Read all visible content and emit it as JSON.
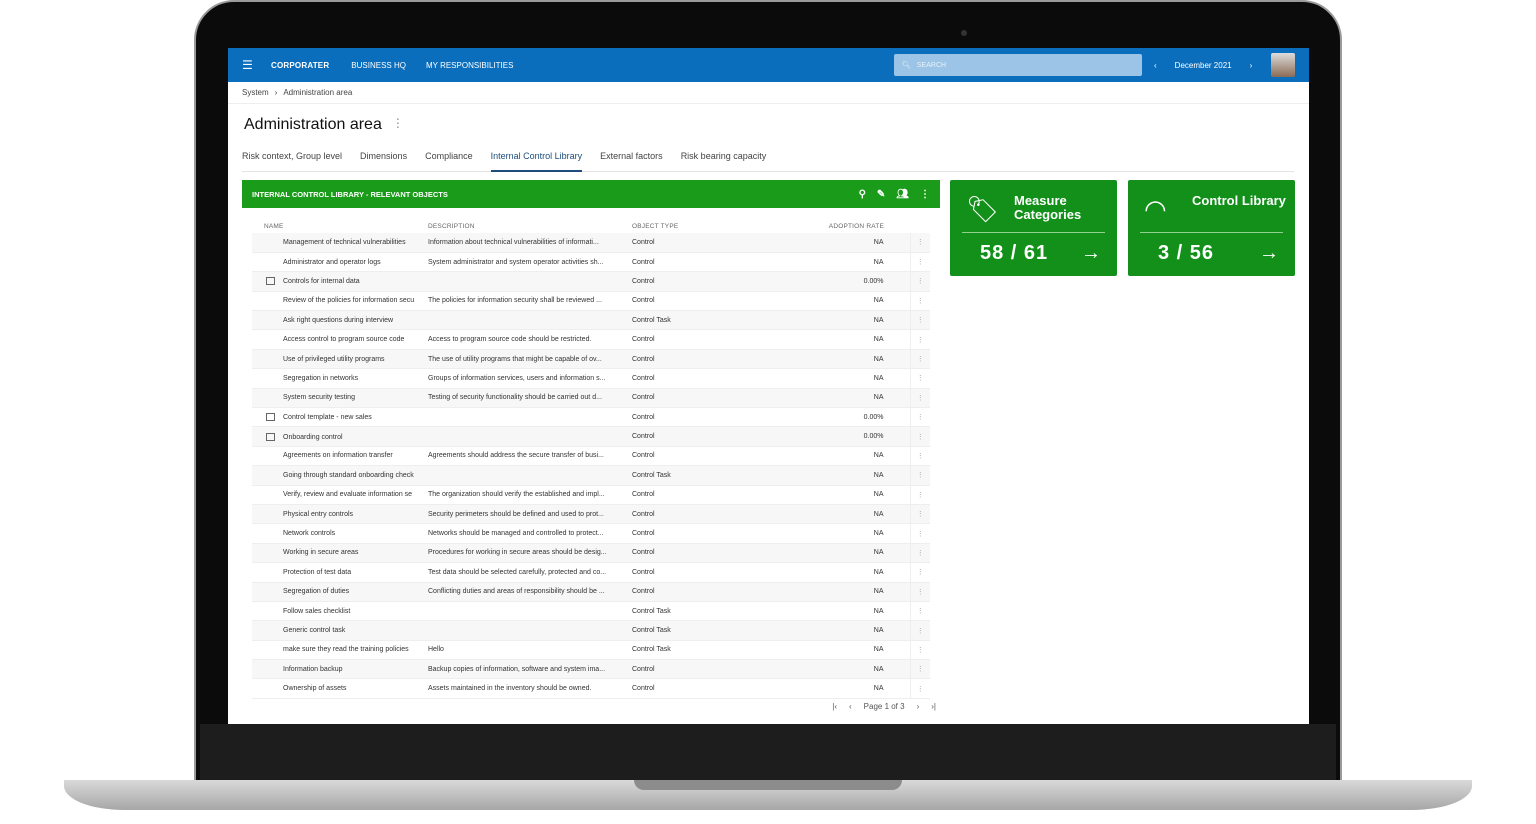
{
  "app": {
    "logo": "CORPORATER",
    "nav": [
      "BUSINESS HQ",
      "MY RESPONSIBILITIES"
    ],
    "search_placeholder": "SEARCH",
    "period": "December 2021"
  },
  "breadcrumb": [
    "System",
    "Administration area"
  ],
  "page_title": "Administration area",
  "tabs": [
    {
      "label": "Risk context, Group level"
    },
    {
      "label": "Dimensions"
    },
    {
      "label": "Compliance"
    },
    {
      "label": "Internal Control Library",
      "active": true
    },
    {
      "label": "External factors"
    },
    {
      "label": "Risk bearing capacity"
    }
  ],
  "panel": {
    "title": "INTERNAL CONTROL LIBRARY - RELEVANT OBJECTS",
    "columns": [
      "NAME",
      "DESCRIPTION",
      "OBJECT TYPE",
      "ADOPTION RATE"
    ],
    "rows": [
      [
        "Management of technical vulnerabilities",
        "Information about technical vulnerabilities of informati...",
        "Control",
        "NA",
        false
      ],
      [
        "Administrator and operator logs",
        "System administrator and system operator activities sh...",
        "Control",
        "NA",
        false
      ],
      [
        "Controls for internal data",
        "",
        "Control",
        "0.00%",
        true
      ],
      [
        "Review of the policies for information secu",
        "The policies for information security shall be reviewed ...",
        "Control",
        "NA",
        false
      ],
      [
        "Ask right questions during interview",
        "",
        "Control Task",
        "NA",
        false
      ],
      [
        "Access control to program source code",
        "Access to program source code should be restricted.",
        "Control",
        "NA",
        false
      ],
      [
        "Use of privileged utility programs",
        "The use of utility programs that might be capable of ov...",
        "Control",
        "NA",
        false
      ],
      [
        "Segregation in networks",
        "Groups of information services, users and information s...",
        "Control",
        "NA",
        false
      ],
      [
        "System security testing",
        "Testing of security functionality should be carried out d...",
        "Control",
        "NA",
        false
      ],
      [
        "Control template - new sales",
        "",
        "Control",
        "0.00%",
        true
      ],
      [
        "Onboarding control",
        "",
        "Control",
        "0.00%",
        true
      ],
      [
        "Agreements on information transfer",
        "Agreements should address the secure transfer of busi...",
        "Control",
        "NA",
        false
      ],
      [
        "Going through standard onboarding check",
        "",
        "Control Task",
        "NA",
        false
      ],
      [
        "Verify, review and evaluate information se",
        "The organization should verify the established and impl...",
        "Control",
        "NA",
        false
      ],
      [
        "Physical entry controls",
        "Security perimeters should be defined and used to prot...",
        "Control",
        "NA",
        false
      ],
      [
        "Network controls",
        "Networks should be managed and controlled to protect...",
        "Control",
        "NA",
        false
      ],
      [
        "Working in secure areas",
        "Procedures for working in secure areas should be desig...",
        "Control",
        "NA",
        false
      ],
      [
        "Protection of test data",
        "Test data should be selected carefully, protected and co...",
        "Control",
        "NA",
        false
      ],
      [
        "Segregation of duties",
        "Conflicting duties and areas of responsibility should be ...",
        "Control",
        "NA",
        false
      ],
      [
        "Follow sales checklist",
        "",
        "Control Task",
        "NA",
        false
      ],
      [
        "Generic control task",
        "",
        "Control Task",
        "NA",
        false
      ],
      [
        "make sure they read the training policies",
        "Hello",
        "Control Task",
        "NA",
        false
      ],
      [
        "Information backup",
        "Backup copies of information, software and system ima...",
        "Control",
        "NA",
        false
      ],
      [
        "Ownership of assets",
        "Assets maintained in the inventory should be owned.",
        "Control",
        "NA",
        false
      ]
    ],
    "pager": "Page 1 of 3"
  },
  "cards": [
    {
      "label": "Measure Categories",
      "value": "58 / 61",
      "icon": "tag-icon"
    },
    {
      "label": "Control Library",
      "value": "3 / 56",
      "icon": "gauge-icon"
    }
  ],
  "colors": {
    "topbar": "#0a6ebd",
    "green": "#1a9c1a",
    "card": "#12901a",
    "active_tab": "#1d4c7d"
  }
}
